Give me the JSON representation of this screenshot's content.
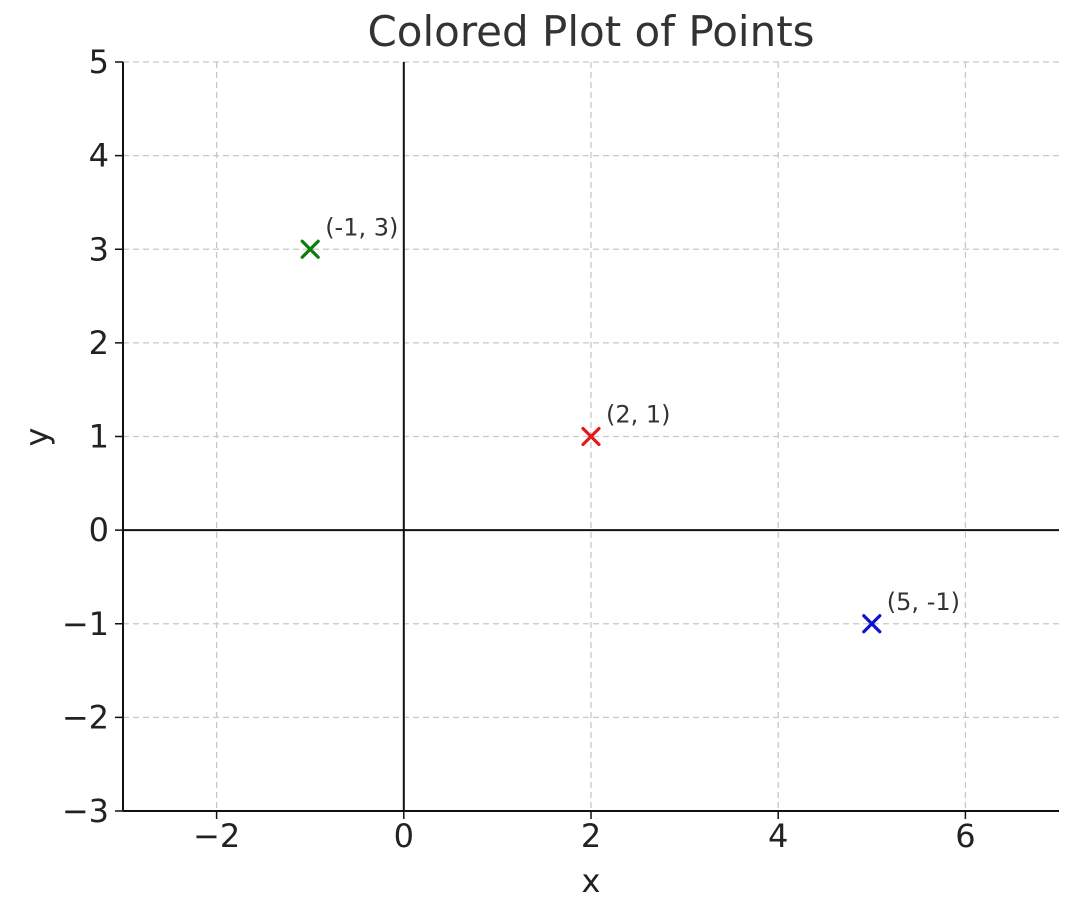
{
  "chart_data": {
    "type": "scatter",
    "title": "Colored Plot of Points",
    "xlabel": "x",
    "ylabel": "y",
    "xlim": [
      -3,
      7
    ],
    "ylim": [
      -3,
      5
    ],
    "x_ticks": [
      -2,
      0,
      2,
      4,
      6
    ],
    "x_tick_labels": [
      "−2",
      "0",
      "2",
      "4",
      "6"
    ],
    "y_ticks": [
      -3,
      -2,
      -1,
      0,
      1,
      2,
      3,
      4,
      5
    ],
    "y_tick_labels": [
      "−3",
      "−2",
      "−1",
      "0",
      "1",
      "2",
      "3",
      "4",
      "5"
    ],
    "grid": true,
    "zero_axes": true,
    "marker": "x",
    "points": [
      {
        "x": 2,
        "y": 1,
        "label": "(2, 1)",
        "color": "#e31a1c"
      },
      {
        "x": -1,
        "y": 3,
        "label": "(-1, 3)",
        "color": "#0b7d0b"
      },
      {
        "x": 5,
        "y": -1,
        "label": "(5, -1)",
        "color": "#1111cc"
      }
    ]
  }
}
